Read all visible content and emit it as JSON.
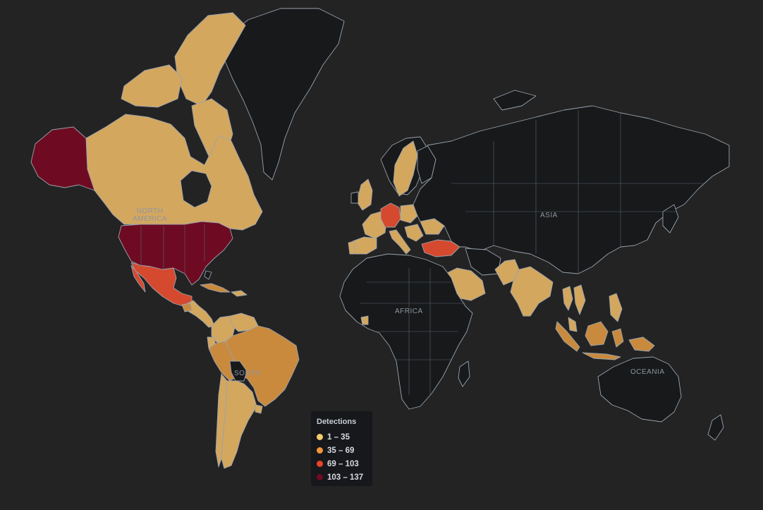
{
  "legend": {
    "title": "Detections",
    "bins": [
      {
        "label": "1 – 35",
        "color": "#f5cc6b"
      },
      {
        "label": "35 – 69",
        "color": "#f0963a"
      },
      {
        "label": "69 – 103",
        "color": "#e8432a"
      },
      {
        "label": "103 – 137",
        "color": "#6e0b22"
      }
    ]
  },
  "continent_labels": {
    "north_america_line1": "NORTH",
    "north_america_line2": "AMERICA",
    "south_america": "SOUTH",
    "africa": "AFRICA",
    "asia": "ASIA",
    "oceania": "OCEANIA"
  },
  "colors": {
    "background": "#232323",
    "no_data": "#17191b",
    "low": "#d4a75f",
    "mid": "#c98a3e",
    "high": "#d54a2f",
    "max": "#6e0b22"
  },
  "chart_data": {
    "type": "choropleth",
    "metric": "Detections",
    "bins": [
      "1 – 35",
      "35 – 69",
      "69 – 103",
      "103 – 137"
    ],
    "regions": [
      {
        "name": "United States",
        "bin": "103 – 137"
      },
      {
        "name": "Alaska (US)",
        "bin": "103 – 137"
      },
      {
        "name": "Canada",
        "bin": "1 – 35"
      },
      {
        "name": "Mexico",
        "bin": "69 – 103"
      },
      {
        "name": "Germany",
        "bin": "69 – 103"
      },
      {
        "name": "Turkey",
        "bin": "69 – 103"
      },
      {
        "name": "Brazil",
        "bin": "35 – 69"
      },
      {
        "name": "Peru",
        "bin": "35 – 69"
      },
      {
        "name": "Indonesia",
        "bin": "35 – 69"
      },
      {
        "name": "Cuba",
        "bin": "35 – 69"
      },
      {
        "name": "Guatemala",
        "bin": "35 – 69"
      },
      {
        "name": "Colombia",
        "bin": "1 – 35"
      },
      {
        "name": "Venezuela",
        "bin": "1 – 35"
      },
      {
        "name": "Ecuador",
        "bin": "1 – 35"
      },
      {
        "name": "Chile",
        "bin": "1 – 35"
      },
      {
        "name": "Argentina",
        "bin": "1 – 35"
      },
      {
        "name": "Uruguay",
        "bin": "1 – 35"
      },
      {
        "name": "Sweden",
        "bin": "1 – 35"
      },
      {
        "name": "France",
        "bin": "1 – 35"
      },
      {
        "name": "Spain",
        "bin": "1 – 35"
      },
      {
        "name": "Portugal",
        "bin": "1 – 35"
      },
      {
        "name": "Italy",
        "bin": "1 – 35"
      },
      {
        "name": "United Kingdom",
        "bin": "1 – 35"
      },
      {
        "name": "Poland",
        "bin": "1 – 35"
      },
      {
        "name": "Romania",
        "bin": "1 – 35"
      },
      {
        "name": "Saudi Arabia",
        "bin": "1 – 35"
      },
      {
        "name": "Pakistan",
        "bin": "1 – 35"
      },
      {
        "name": "India",
        "bin": "1 – 35"
      },
      {
        "name": "Vietnam",
        "bin": "1 – 35"
      },
      {
        "name": "Thailand",
        "bin": "1 – 35"
      },
      {
        "name": "Philippines",
        "bin": "1 – 35"
      },
      {
        "name": "Malaysia",
        "bin": "1 – 35"
      },
      {
        "name": "Sierra Leone",
        "bin": "1 – 35"
      }
    ]
  }
}
